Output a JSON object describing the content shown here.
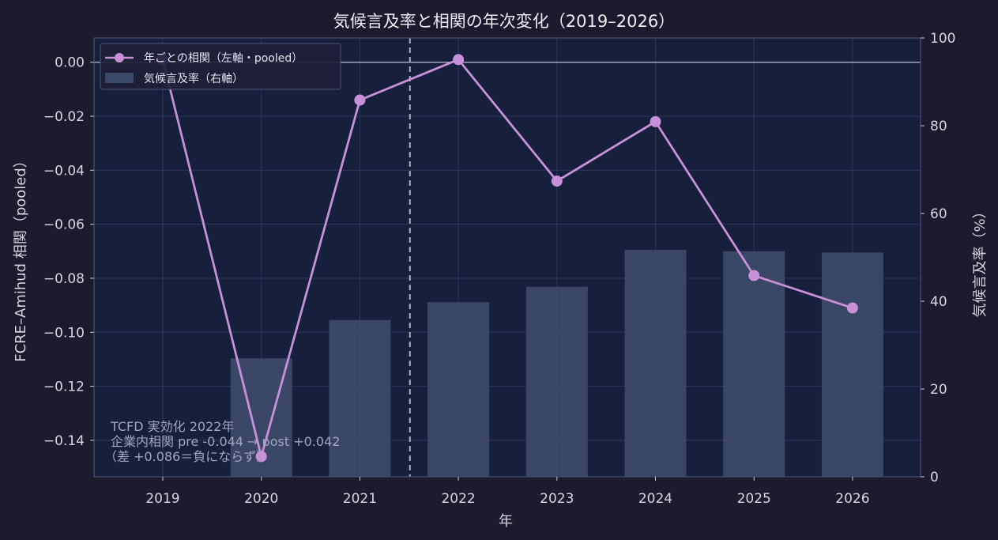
{
  "chart_data": {
    "type": "bar+line",
    "title": "気候言及率と相関の年次変化（2019–2026）",
    "xlabel": "年",
    "ylabel_left": "FCRE–Amihud 相関（pooled）",
    "ylabel_right": "気候言及率（%）",
    "categories": [
      "2019",
      "2020",
      "2021",
      "2022",
      "2023",
      "2024",
      "2025",
      "2026"
    ],
    "y_left_lim": [
      -0.1535,
      0.009
    ],
    "y_left_ticks": [
      "0.00",
      "−0.02",
      "−0.04",
      "−0.06",
      "−0.08",
      "−0.10",
      "−0.12",
      "−0.14"
    ],
    "y_left_tick_values": [
      0.0,
      -0.02,
      -0.04,
      -0.06,
      -0.08,
      -0.1,
      -0.12,
      -0.14
    ],
    "y_right_lim": [
      0,
      100
    ],
    "y_right_ticks": [
      "0",
      "20",
      "40",
      "60",
      "80",
      "100"
    ],
    "y_right_tick_values": [
      0,
      20,
      40,
      60,
      80,
      100
    ],
    "series": [
      {
        "name": "年ごとの相関（左軸・pooled）",
        "kind": "line",
        "axis": "left",
        "color": "#c790d8",
        "values": [
          0.001,
          -0.146,
          -0.014,
          0.001,
          -0.044,
          -0.022,
          -0.079,
          -0.091
        ]
      },
      {
        "name": "気候言及率（右軸）",
        "kind": "bar",
        "axis": "right",
        "color": "#3e4a69",
        "values": [
          0,
          27,
          35.7,
          39.8,
          43.3,
          51.7,
          51.4,
          51.1
        ]
      }
    ],
    "vline": {
      "x_between": [
        "2021",
        "2022"
      ],
      "style": "dashed"
    },
    "hline_left": 0.0,
    "annotation": {
      "lines": [
        "TCFD 実効化 2022年",
        "企業内相関 pre -0.044 → post +0.042",
        "（差 +0.086＝負にならず）"
      ]
    },
    "legend_position": "top-left",
    "grid": true
  }
}
